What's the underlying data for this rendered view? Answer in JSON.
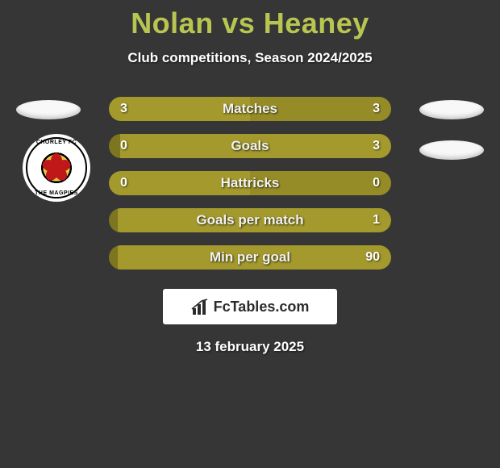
{
  "title": "Nolan vs Heaney",
  "subtitle": "Club competitions, Season 2024/2025",
  "date": "13 february 2025",
  "brand": {
    "name": "FcTables.com",
    "icon": "bar-chart-icon"
  },
  "colors": {
    "background": "#363636",
    "accent": "#b8c651",
    "bar_main": "#a3992c",
    "bar_alt": "#968c27",
    "bar_dim": "#7d751f",
    "text": "#ffffff"
  },
  "players": {
    "left": {
      "name": "Nolan",
      "club_name": "CHORLEY FC",
      "club_motto": "THE MAGPIES",
      "marker_shape": "ellipse"
    },
    "right": {
      "name": "Heaney",
      "marker_shape": "ellipse"
    }
  },
  "comparison": {
    "type": "dual-bar-horizontal",
    "rows": [
      {
        "metric": "Matches",
        "left": "3",
        "right": "3",
        "left_pct": 50,
        "left_style": "main",
        "right_style": "alt"
      },
      {
        "metric": "Goals",
        "left": "0",
        "right": "3",
        "left_pct": 4,
        "left_style": "dim",
        "right_style": "main"
      },
      {
        "metric": "Hattricks",
        "left": "0",
        "right": "0",
        "left_pct": 50,
        "left_style": "main",
        "right_style": "alt"
      },
      {
        "metric": "Goals per match",
        "left": "",
        "right": "1",
        "left_pct": 3,
        "left_style": "dim",
        "right_style": "main"
      },
      {
        "metric": "Min per goal",
        "left": "",
        "right": "90",
        "left_pct": 3,
        "left_style": "dim",
        "right_style": "main"
      }
    ]
  },
  "side_markers": [
    {
      "side": "left",
      "row": 0
    },
    {
      "side": "right",
      "row": 0
    },
    {
      "side": "right",
      "row": 1
    }
  ]
}
